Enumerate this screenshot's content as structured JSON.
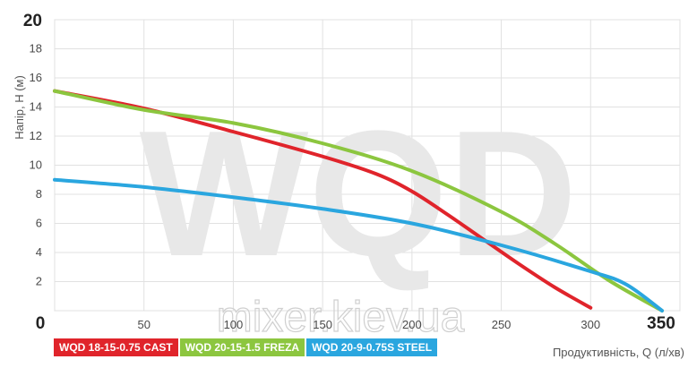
{
  "chart_data": {
    "type": "line",
    "title": "",
    "xlabel": "Продуктивність, Q (л/хв)",
    "ylabel": "Напір, Н (м)",
    "xlim": [
      0,
      350
    ],
    "ylim": [
      0,
      20
    ],
    "x_ticks": [
      "0",
      "50",
      "100",
      "150",
      "200",
      "250",
      "300",
      "350"
    ],
    "y_ticks": [
      "0",
      "2",
      "4",
      "6",
      "8",
      "10",
      "12",
      "14",
      "16",
      "18",
      "20"
    ],
    "grid": true,
    "legend_position": "bottom-left",
    "background_text": [
      "WQD",
      "mixer.kiev.ua"
    ],
    "series": [
      {
        "name": "WQD 18-15-0.75  CAST",
        "color": "#e0242b",
        "points": [
          [
            0,
            15.1
          ],
          [
            50,
            13.9
          ],
          [
            100,
            12.3
          ],
          [
            150,
            10.6
          ],
          [
            180,
            9.4
          ],
          [
            200,
            8.2
          ],
          [
            220,
            6.6
          ],
          [
            240,
            4.9
          ],
          [
            260,
            3.2
          ],
          [
            280,
            1.6
          ],
          [
            300,
            0.2
          ]
        ]
      },
      {
        "name": "WQD 20-15-1.5 FREZA",
        "color": "#8cc63f",
        "points": [
          [
            0,
            15.1
          ],
          [
            50,
            13.8
          ],
          [
            100,
            12.9
          ],
          [
            150,
            11.5
          ],
          [
            200,
            9.6
          ],
          [
            250,
            6.8
          ],
          [
            280,
            4.6
          ],
          [
            310,
            2.1
          ],
          [
            340,
            0.0
          ]
        ]
      },
      {
        "name": "WQD 20-9-0.75S STEEL",
        "color": "#2aa6df",
        "points": [
          [
            0,
            9.0
          ],
          [
            50,
            8.5
          ],
          [
            100,
            7.8
          ],
          [
            150,
            7.0
          ],
          [
            200,
            6.0
          ],
          [
            250,
            4.5
          ],
          [
            300,
            2.7
          ],
          [
            320,
            1.8
          ],
          [
            340,
            0.0
          ]
        ]
      }
    ]
  }
}
